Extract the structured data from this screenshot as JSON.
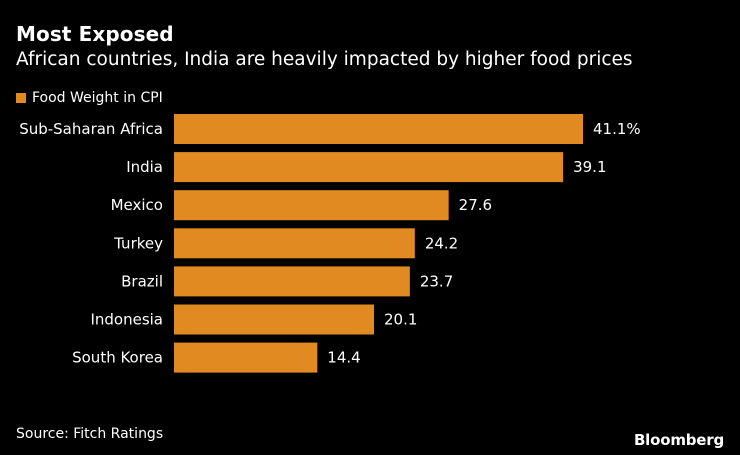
{
  "header": {
    "title": "Most Exposed",
    "subtitle": "African countries, India are heavily impacted by higher food prices"
  },
  "legend": {
    "label": "Food Weight in CPI"
  },
  "colors": {
    "bar": "#e08a21",
    "background": "#000000",
    "text": "#ffffff"
  },
  "chart_data": {
    "type": "bar",
    "orientation": "horizontal",
    "title": "Most Exposed",
    "subtitle": "African countries, India are heavily impacted by higher food prices",
    "categories": [
      "Sub-Saharan Africa",
      "India",
      "Mexico",
      "Turkey",
      "Brazil",
      "Indonesia",
      "South Korea"
    ],
    "series": [
      {
        "name": "Food Weight in CPI",
        "values": [
          41.1,
          39.1,
          27.6,
          24.2,
          23.7,
          20.1,
          14.4
        ]
      }
    ],
    "data_labels": [
      "41.1%",
      "39.1",
      "27.6",
      "24.2",
      "23.7",
      "20.1",
      "14.4"
    ],
    "xlim": [
      0,
      41.1
    ],
    "xlabel": "",
    "ylabel": "",
    "grid": false,
    "legend_position": "top-left"
  },
  "footer": {
    "source": "Source: Fitch Ratings",
    "brand": "Bloomberg"
  }
}
